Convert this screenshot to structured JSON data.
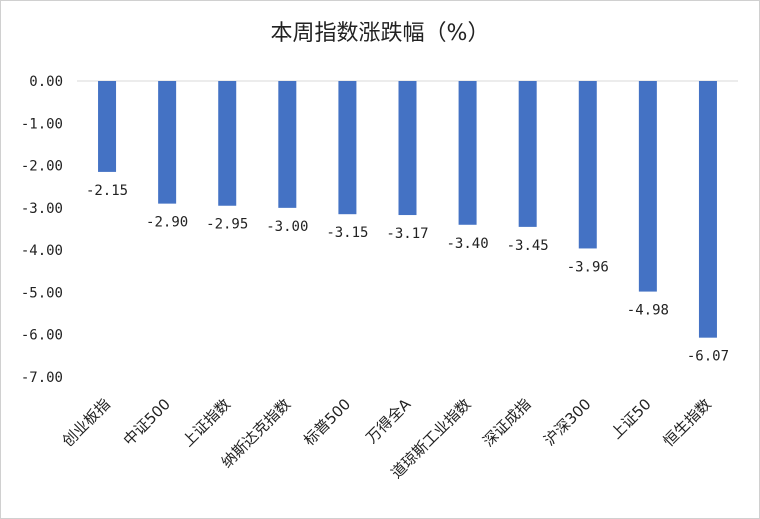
{
  "chart_data": {
    "type": "bar",
    "title": "本周指数涨跌幅（%）",
    "categories": [
      "创业板指",
      "中证500",
      "上证指数",
      "纳斯达克指数",
      "标普500",
      "万得全A",
      "道琼斯工业指数",
      "深证成指",
      "沪深300",
      "上证50",
      "恒生指数"
    ],
    "values": [
      -2.15,
      -2.9,
      -2.95,
      -3.0,
      -3.15,
      -3.17,
      -3.4,
      -3.45,
      -3.96,
      -4.98,
      -6.07
    ],
    "data_labels": [
      "-2.15",
      "-2.90",
      "-2.95",
      "-3.00",
      "-3.15",
      "-3.17",
      "-3.40",
      "-3.45",
      "-3.96",
      "-4.98",
      "-6.07"
    ],
    "y_ticks": [
      "0.00",
      "-1.00",
      "-2.00",
      "-3.00",
      "-4.00",
      "-5.00",
      "-6.00",
      "-7.00"
    ],
    "ylim": [
      -7,
      0
    ],
    "xlabel": "",
    "ylabel": "",
    "grid": false,
    "bar_color": "#4472C4"
  }
}
